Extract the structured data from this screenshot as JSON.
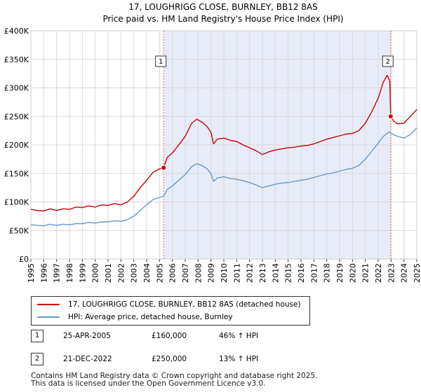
{
  "chart_data": {
    "type": "line",
    "title": "17, LOUGHRIGG CLOSE, BURNLEY, BB12 8AS",
    "subtitle": "Price paid vs. HM Land Registry's House Price Index (HPI)",
    "xlabel": "",
    "ylabel": "",
    "xlim": [
      1995,
      2025
    ],
    "ylim": [
      0,
      400000
    ],
    "y_ticks": [
      {
        "value": 0,
        "label": "£0"
      },
      {
        "value": 50000,
        "label": "£50K"
      },
      {
        "value": 100000,
        "label": "£100K"
      },
      {
        "value": 150000,
        "label": "£150K"
      },
      {
        "value": 200000,
        "label": "£200K"
      },
      {
        "value": 250000,
        "label": "£250K"
      },
      {
        "value": 300000,
        "label": "£300K"
      },
      {
        "value": 350000,
        "label": "£350K"
      },
      {
        "value": 400000,
        "label": "£400K"
      }
    ],
    "x_ticks": [
      "1995",
      "1996",
      "1997",
      "1998",
      "1999",
      "2000",
      "2001",
      "2002",
      "2003",
      "2004",
      "2005",
      "2006",
      "2007",
      "2008",
      "2009",
      "2010",
      "2011",
      "2012",
      "2013",
      "2014",
      "2015",
      "2016",
      "2017",
      "2018",
      "2019",
      "2020",
      "2021",
      "2022",
      "2023",
      "2024",
      "2025"
    ],
    "grid": true,
    "shaded_period": [
      2005.32,
      2022.97
    ],
    "series": [
      {
        "name": "17, LOUGHRIGG CLOSE, BURNLEY, BB12 8AS (detached house)",
        "color": "#cc0000",
        "x": [
          1995.0,
          1995.5,
          1996.0,
          1996.5,
          1997.0,
          1997.5,
          1998.0,
          1998.5,
          1999.0,
          1999.5,
          2000.0,
          2000.5,
          2001.0,
          2001.5,
          2002.0,
          2002.5,
          2003.0,
          2003.5,
          2004.0,
          2004.5,
          2005.0,
          2005.32,
          2005.6,
          2006.0,
          2006.5,
          2007.0,
          2007.5,
          2007.9,
          2008.3,
          2008.7,
          2009.0,
          2009.2,
          2009.5,
          2010.0,
          2010.5,
          2011.0,
          2011.5,
          2012.0,
          2012.5,
          2013.0,
          2013.5,
          2014.0,
          2014.5,
          2015.0,
          2015.5,
          2016.0,
          2016.5,
          2017.0,
          2017.5,
          2018.0,
          2018.5,
          2019.0,
          2019.5,
          2020.0,
          2020.5,
          2021.0,
          2021.5,
          2022.0,
          2022.4,
          2022.7,
          2022.9,
          2022.97,
          2023.2,
          2023.5,
          2024.0,
          2024.5,
          2025.0
        ],
        "y": [
          87000,
          85000,
          84000,
          88000,
          85000,
          88000,
          87000,
          91000,
          90000,
          93000,
          91000,
          95000,
          94000,
          97000,
          95000,
          100000,
          110000,
          125000,
          138000,
          152000,
          158000,
          160000,
          178000,
          186000,
          200000,
          215000,
          238000,
          245000,
          240000,
          232000,
          222000,
          202000,
          210000,
          212000,
          208000,
          206000,
          200000,
          195000,
          190000,
          183000,
          188000,
          191000,
          193000,
          195000,
          196000,
          198000,
          199000,
          202000,
          206000,
          210000,
          213000,
          216000,
          219000,
          220000,
          225000,
          238000,
          258000,
          282000,
          310000,
          322000,
          312000,
          250000,
          242000,
          237000,
          238000,
          250000,
          262000
        ]
      },
      {
        "name": "HPI: Average price, detached house, Burnley",
        "color": "#6699cc",
        "x": [
          1995.0,
          1995.5,
          1996.0,
          1996.5,
          1997.0,
          1997.5,
          1998.0,
          1998.5,
          1999.0,
          1999.5,
          2000.0,
          2000.5,
          2001.0,
          2001.5,
          2002.0,
          2002.5,
          2003.0,
          2003.5,
          2004.0,
          2004.5,
          2005.0,
          2005.32,
          2005.6,
          2006.0,
          2006.5,
          2007.0,
          2007.5,
          2007.9,
          2008.3,
          2008.7,
          2009.0,
          2009.2,
          2009.5,
          2010.0,
          2010.5,
          2011.0,
          2011.5,
          2012.0,
          2012.5,
          2013.0,
          2013.5,
          2014.0,
          2014.5,
          2015.0,
          2015.5,
          2016.0,
          2016.5,
          2017.0,
          2017.5,
          2018.0,
          2018.5,
          2019.0,
          2019.5,
          2020.0,
          2020.5,
          2021.0,
          2021.5,
          2022.0,
          2022.4,
          2022.7,
          2022.9,
          2022.97,
          2023.2,
          2023.5,
          2024.0,
          2024.5,
          2025.0
        ],
        "y": [
          60000,
          59000,
          58000,
          61000,
          59000,
          61000,
          60000,
          62000,
          62000,
          64000,
          63000,
          65000,
          65000,
          67000,
          66000,
          69000,
          75000,
          85000,
          95000,
          104000,
          108000,
          110000,
          122000,
          128000,
          138000,
          148000,
          162000,
          167000,
          164000,
          158000,
          150000,
          136000,
          142000,
          144000,
          141000,
          140000,
          137000,
          134000,
          130000,
          125000,
          128000,
          131000,
          133000,
          134000,
          136000,
          138000,
          140000,
          143000,
          146000,
          149000,
          151000,
          154000,
          157000,
          159000,
          164000,
          175000,
          189000,
          203000,
          215000,
          220000,
          223000,
          221000,
          218000,
          215000,
          212000,
          218000,
          230000
        ]
      }
    ],
    "markers": [
      {
        "label": "1",
        "x": 2005.32,
        "y": 160000
      },
      {
        "label": "2",
        "x": 2022.97,
        "y": 250000
      }
    ]
  },
  "legend": [
    {
      "label": "17, LOUGHRIGG CLOSE, BURNLEY, BB12 8AS (detached house)",
      "color": "#cc0000"
    },
    {
      "label": "HPI: Average price, detached house, Burnley",
      "color": "#6699cc"
    }
  ],
  "sales": [
    {
      "num": "1",
      "date": "25-APR-2005",
      "price": "£160,000",
      "hpi": "46% ↑ HPI"
    },
    {
      "num": "2",
      "date": "21-DEC-2022",
      "price": "£250,000",
      "hpi": "13% ↑ HPI"
    }
  ],
  "footer": {
    "line1": "Contains HM Land Registry data © Crown copyright and database right 2025.",
    "line2": "This data is licensed under the Open Government Licence v3.0."
  }
}
